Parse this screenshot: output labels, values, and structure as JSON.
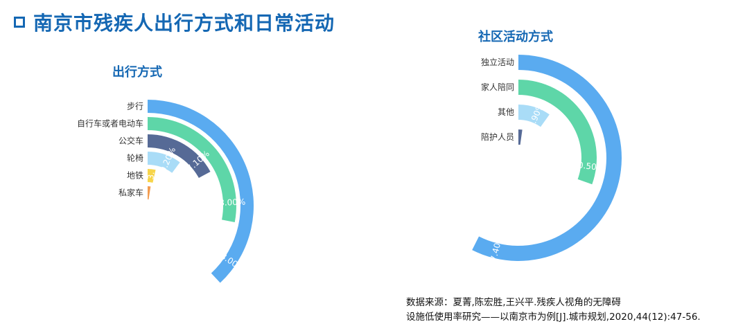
{
  "page": {
    "title": "南京市残疾人出行方式和日常活动"
  },
  "source": {
    "line1": "数据来源：夏菁,陈宏胜,王兴平.残疾人视角的无障碍",
    "line2": "设施低使用率研究——以南京市为例[J].城市规划,2020,44(12):47-56."
  },
  "chart_data": [
    {
      "type": "radial-bar",
      "title": "出行方式",
      "max": 100,
      "series": [
        {
          "label": "步行",
          "value": 38.0,
          "display": "38.00%",
          "color": "#5aabf0"
        },
        {
          "label": "自行车或者电动车",
          "value": 28.0,
          "display": "28.00%",
          "color": "#5ed6a8"
        },
        {
          "label": "公交车",
          "value": 17.1,
          "display": "17.10%",
          "color": "#566a96"
        },
        {
          "label": "轮椅",
          "value": 10.2,
          "display": "10.20%",
          "color": "#a9dcf7"
        },
        {
          "label": "地铁",
          "value": 3.5,
          "display": "3.",
          "color": "#f7d54a"
        },
        {
          "label": "私家车",
          "value": 2.5,
          "display": "",
          "color": "#f39c4f"
        }
      ]
    },
    {
      "type": "radial-bar",
      "title": "社区活动方式",
      "max": 100,
      "series": [
        {
          "label": "独立活动",
          "value": 57.4,
          "display": "57.40%",
          "color": "#5aabf0"
        },
        {
          "label": "家人陪同",
          "value": 30.5,
          "display": "30.50%",
          "color": "#5ed6a8"
        },
        {
          "label": "其他",
          "value": 9.9,
          "display": "9.90%",
          "color": "#a9dcf7"
        },
        {
          "label": "陪护人员",
          "value": 2.2,
          "display": "",
          "color": "#566a96"
        }
      ]
    }
  ]
}
